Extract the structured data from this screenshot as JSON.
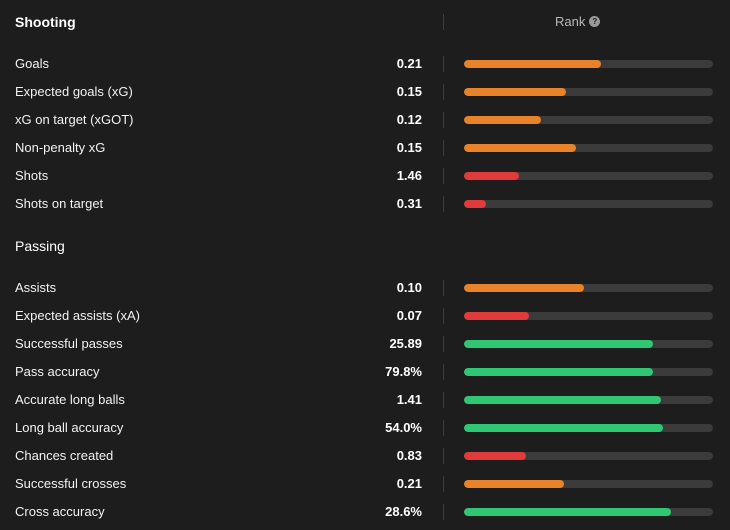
{
  "colors": {
    "high": "#2fc771",
    "mid": "#e8832a",
    "low": "#e03a3a",
    "track": "#3b3b3b",
    "background": "#1d1d1d"
  },
  "header": {
    "shooting_title": "Shooting",
    "rank_label": "Rank",
    "help_icon": "help-icon",
    "help_glyph": "?"
  },
  "passing": {
    "title": "Passing"
  },
  "stats": {
    "shooting": [
      {
        "label": "Goals",
        "value": "0.21",
        "rank": 0.55,
        "level": "mid"
      },
      {
        "label": "Expected goals (xG)",
        "value": "0.15",
        "rank": 0.41,
        "level": "mid"
      },
      {
        "label": "xG on target (xGOT)",
        "value": "0.12",
        "rank": 0.31,
        "level": "mid"
      },
      {
        "label": "Non-penalty xG",
        "value": "0.15",
        "rank": 0.45,
        "level": "mid"
      },
      {
        "label": "Shots",
        "value": "1.46",
        "rank": 0.22,
        "level": "low"
      },
      {
        "label": "Shots on target",
        "value": "0.31",
        "rank": 0.09,
        "level": "low"
      }
    ],
    "passing": [
      {
        "label": "Assists",
        "value": "0.10",
        "rank": 0.48,
        "level": "mid"
      },
      {
        "label": "Expected assists (xA)",
        "value": "0.07",
        "rank": 0.26,
        "level": "low"
      },
      {
        "label": "Successful passes",
        "value": "25.89",
        "rank": 0.76,
        "level": "high"
      },
      {
        "label": "Pass accuracy",
        "value": "79.8%",
        "rank": 0.76,
        "level": "high"
      },
      {
        "label": "Accurate long balls",
        "value": "1.41",
        "rank": 0.79,
        "level": "high"
      },
      {
        "label": "Long ball accuracy",
        "value": "54.0%",
        "rank": 0.8,
        "level": "high"
      },
      {
        "label": "Chances created",
        "value": "0.83",
        "rank": 0.25,
        "level": "low"
      },
      {
        "label": "Successful crosses",
        "value": "0.21",
        "rank": 0.4,
        "level": "mid"
      },
      {
        "label": "Cross accuracy",
        "value": "28.6%",
        "rank": 0.83,
        "level": "high"
      }
    ]
  }
}
